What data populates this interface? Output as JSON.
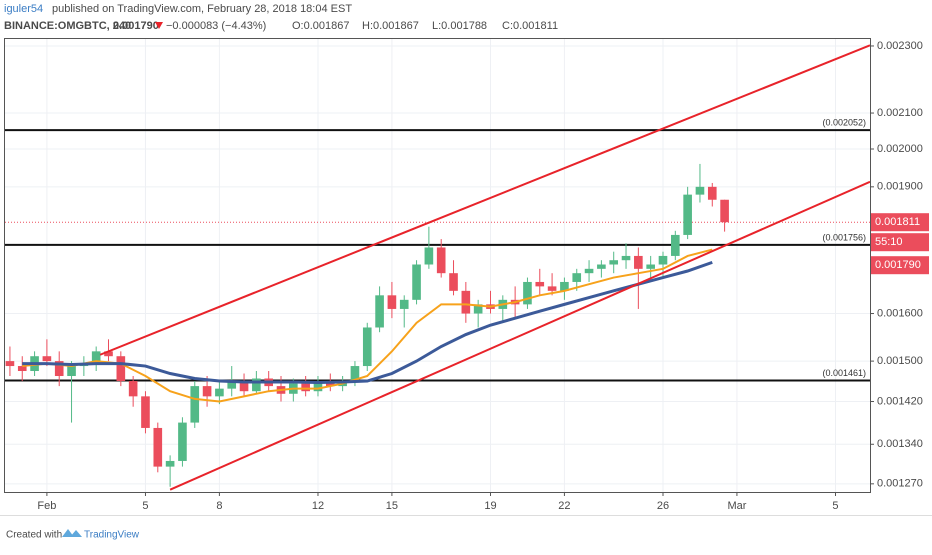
{
  "header": {
    "author": "iguler54",
    "published": "published on TradingView.com, February 28, 2018 18:04 EST",
    "symbol": "BINANCE:OMGBTC, 240",
    "last": "0.001790",
    "change": "−0.000083 (−4.43%)",
    "ohlc": [
      "O:0.001867",
      "H:0.001867",
      "L:0.001788",
      "C:0.001811"
    ]
  },
  "footer": {
    "created": "Created with",
    "brand": "TradingView"
  },
  "chart_data": {
    "type": "candlestick",
    "log_scale": true,
    "grid": true,
    "up_color": "#53b987",
    "down_color": "#eb4d5c",
    "xlim": [
      -0.7,
      34.4
    ],
    "ylim": [
      0.001256,
      0.002325
    ],
    "xticks": [
      {
        "value": 1,
        "label": "Feb"
      },
      5,
      8,
      12,
      15,
      19,
      22,
      26,
      {
        "value": 29,
        "label": "Mar"
      },
      {
        "value": 33,
        "label": "5"
      }
    ],
    "yticks": [
      {
        "value": 0.0023,
        "label": "0.002300"
      },
      {
        "value": 0.0021,
        "label": "0.002100"
      },
      {
        "value": 0.002,
        "label": "0.002000"
      },
      {
        "value": 0.0019,
        "label": "0.001900"
      },
      {
        "value": 0.0016,
        "label": "0.001600"
      },
      {
        "value": 0.0015,
        "label": "0.001500"
      },
      {
        "value": 0.00142,
        "label": "0.001420"
      },
      {
        "value": 0.00134,
        "label": "0.001340"
      },
      {
        "value": 0.00127,
        "label": "0.001270"
      }
    ],
    "x": [
      -0.5,
      0,
      0.5,
      1,
      1.5,
      2,
      2.5,
      3,
      3.5,
      4,
      4.5,
      5,
      5.5,
      6,
      6.5,
      7,
      7.5,
      8,
      8.5,
      9,
      9.5,
      10,
      10.5,
      11,
      11.5,
      12,
      12.5,
      13,
      13.5,
      14,
      14.5,
      15,
      15.5,
      16,
      16.5,
      17,
      17.5,
      18,
      18.5,
      19,
      19.5,
      20,
      20.5,
      21,
      21.5,
      22,
      22.5,
      23,
      23.5,
      24,
      24.5,
      25,
      25.5,
      26,
      26.5,
      27,
      27.5,
      28,
      28.5
    ],
    "open": [
      0.0015,
      0.00149,
      0.00148,
      0.00151,
      0.0015,
      0.00147,
      0.00149,
      0.001495,
      0.00152,
      0.00151,
      0.00146,
      0.00143,
      0.00137,
      0.0013,
      0.00131,
      0.00138,
      0.00145,
      0.00143,
      0.001445,
      0.00146,
      0.00144,
      0.001465,
      0.00145,
      0.001435,
      0.001455,
      0.00144,
      0.00146,
      0.00145,
      0.00146,
      0.00149,
      0.00157,
      0.00164,
      0.00161,
      0.00163,
      0.00171,
      0.00175,
      0.00169,
      0.00165,
      0.0016,
      0.00162,
      0.00161,
      0.00163,
      0.00162,
      0.00167,
      0.00166,
      0.00165,
      0.00167,
      0.00169,
      0.0017,
      0.00171,
      0.00172,
      0.00173,
      0.0017,
      0.00171,
      0.00173,
      0.00178,
      0.00188,
      0.0019,
      0.001867
    ],
    "high": [
      0.00153,
      0.00151,
      0.00152,
      0.001545,
      0.00152,
      0.0015,
      0.00151,
      0.00153,
      0.001545,
      0.00152,
      0.00147,
      0.00144,
      0.00138,
      0.00132,
      0.00139,
      0.00146,
      0.00147,
      0.00146,
      0.00149,
      0.001475,
      0.00148,
      0.00148,
      0.00147,
      0.001465,
      0.00147,
      0.00147,
      0.001475,
      0.00147,
      0.0015,
      0.00158,
      0.00166,
      0.00167,
      0.00164,
      0.00172,
      0.0018,
      0.00177,
      0.00172,
      0.00167,
      0.00163,
      0.00165,
      0.00164,
      0.00166,
      0.00168,
      0.0017,
      0.00169,
      0.00168,
      0.0017,
      0.00172,
      0.00172,
      0.00174,
      0.00176,
      0.00175,
      0.00173,
      0.00174,
      0.00179,
      0.0019,
      0.00196,
      0.00191,
      0.001867
    ],
    "low": [
      0.00147,
      0.00146,
      0.00147,
      0.00149,
      0.00145,
      0.00138,
      0.00147,
      0.00148,
      0.0015,
      0.00145,
      0.00141,
      0.00136,
      0.00129,
      0.001265,
      0.0013,
      0.00137,
      0.00141,
      0.001415,
      0.00143,
      0.00143,
      0.001435,
      0.00144,
      0.00142,
      0.00142,
      0.00143,
      0.00143,
      0.00144,
      0.00144,
      0.00145,
      0.00148,
      0.00156,
      0.00159,
      0.00157,
      0.00162,
      0.0017,
      0.00168,
      0.00164,
      0.00158,
      0.00157,
      0.0016,
      0.00158,
      0.00159,
      0.00161,
      0.00164,
      0.00164,
      0.00163,
      0.00165,
      0.00167,
      0.00168,
      0.00169,
      0.0017,
      0.00161,
      0.00168,
      0.00168,
      0.00172,
      0.00177,
      0.00186,
      0.00185,
      0.001788
    ],
    "close": [
      0.00149,
      0.00148,
      0.00151,
      0.0015,
      0.00147,
      0.00149,
      0.001495,
      0.00152,
      0.00151,
      0.00146,
      0.00143,
      0.00137,
      0.0013,
      0.00131,
      0.00138,
      0.00145,
      0.00143,
      0.001445,
      0.00146,
      0.00144,
      0.001465,
      0.00145,
      0.001435,
      0.001455,
      0.00144,
      0.00146,
      0.00145,
      0.00146,
      0.00149,
      0.00157,
      0.00164,
      0.00161,
      0.00163,
      0.00171,
      0.00175,
      0.00169,
      0.00165,
      0.0016,
      0.00162,
      0.00161,
      0.00163,
      0.00162,
      0.00167,
      0.00166,
      0.00165,
      0.00167,
      0.00169,
      0.0017,
      0.00171,
      0.00172,
      0.00173,
      0.0017,
      0.00171,
      0.00173,
      0.00178,
      0.00188,
      0.0019,
      0.001867,
      0.001811
    ],
    "ma": [
      {
        "color": "#f7a21b",
        "x": [
          0,
          1,
          2,
          3,
          4,
          5,
          6,
          7,
          8,
          9,
          10,
          11,
          12,
          13,
          14,
          15,
          16,
          17,
          18,
          19,
          20,
          21,
          22,
          23,
          24,
          25,
          26,
          27,
          28
        ],
        "values": [
          0.00149,
          0.001495,
          0.00149,
          0.0015,
          0.001495,
          0.00147,
          0.00144,
          0.001425,
          0.00142,
          0.00143,
          0.00144,
          0.001445,
          0.001445,
          0.001455,
          0.00147,
          0.00152,
          0.00158,
          0.00162,
          0.00162,
          0.001615,
          0.001625,
          0.00164,
          0.00165,
          0.001665,
          0.00168,
          0.00169,
          0.0017,
          0.00173,
          0.001745
        ]
      },
      {
        "color": "#3c5a99",
        "x": [
          0,
          1,
          2,
          3,
          4,
          5,
          6,
          7,
          8,
          9,
          10,
          11,
          12,
          13,
          14,
          15,
          16,
          17,
          18,
          19,
          20,
          21,
          22,
          23,
          24,
          25,
          26,
          27,
          28
        ],
        "values": [
          0.001495,
          0.001495,
          0.001493,
          0.001495,
          0.001495,
          0.00149,
          0.001475,
          0.001465,
          0.00146,
          0.001458,
          0.001458,
          0.001458,
          0.001457,
          0.001458,
          0.00146,
          0.001475,
          0.0015,
          0.00153,
          0.001555,
          0.001575,
          0.00159,
          0.001605,
          0.00162,
          0.001635,
          0.00165,
          0.001665,
          0.00168,
          0.001695,
          0.001715
        ]
      }
    ],
    "trendlines": [
      {
        "color": "#e8232a",
        "x": [
          3.16,
          34.4
        ],
        "values": [
          0.001513,
          0.002302
        ]
      },
      {
        "color": "#e8232a",
        "x": [
          6.0,
          34.4
        ],
        "values": [
          0.00126,
          0.001913
        ]
      }
    ],
    "levels": [
      {
        "value": 0.002052,
        "label": "(0.002052)"
      },
      {
        "value": 0.001756,
        "label": "(0.001756)"
      },
      {
        "value": 0.001461,
        "label": "(0.001461)"
      }
    ],
    "close_price": {
      "value": 0.001811,
      "label": "0.001811"
    },
    "last_price": {
      "value": 0.00179,
      "label": "0.001790"
    },
    "countdown": "55:10"
  }
}
